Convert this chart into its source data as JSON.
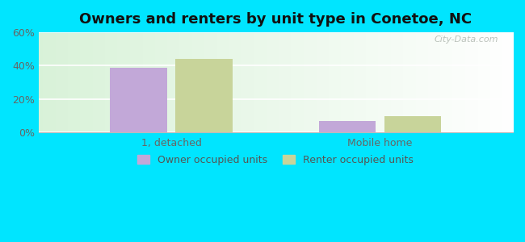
{
  "title": "Owners and renters by unit type in Conetoe, NC",
  "categories": [
    "1, detached",
    "Mobile home"
  ],
  "owner_values": [
    39,
    7
  ],
  "renter_values": [
    44,
    10
  ],
  "owner_color": "#c2a8d8",
  "renter_color": "#c8d49a",
  "owner_label": "Owner occupied units",
  "renter_label": "Renter occupied units",
  "ylim": [
    0,
    60
  ],
  "yticks": [
    0,
    20,
    40,
    60
  ],
  "ytick_labels": [
    "0%",
    "20%",
    "40%",
    "60%"
  ],
  "bar_width": 0.12,
  "outer_bg_color": "#00e5ff",
  "title_fontsize": 13,
  "watermark": "City-Data.com",
  "group_positions": [
    0.28,
    0.72
  ],
  "xlim": [
    0.0,
    1.0
  ]
}
